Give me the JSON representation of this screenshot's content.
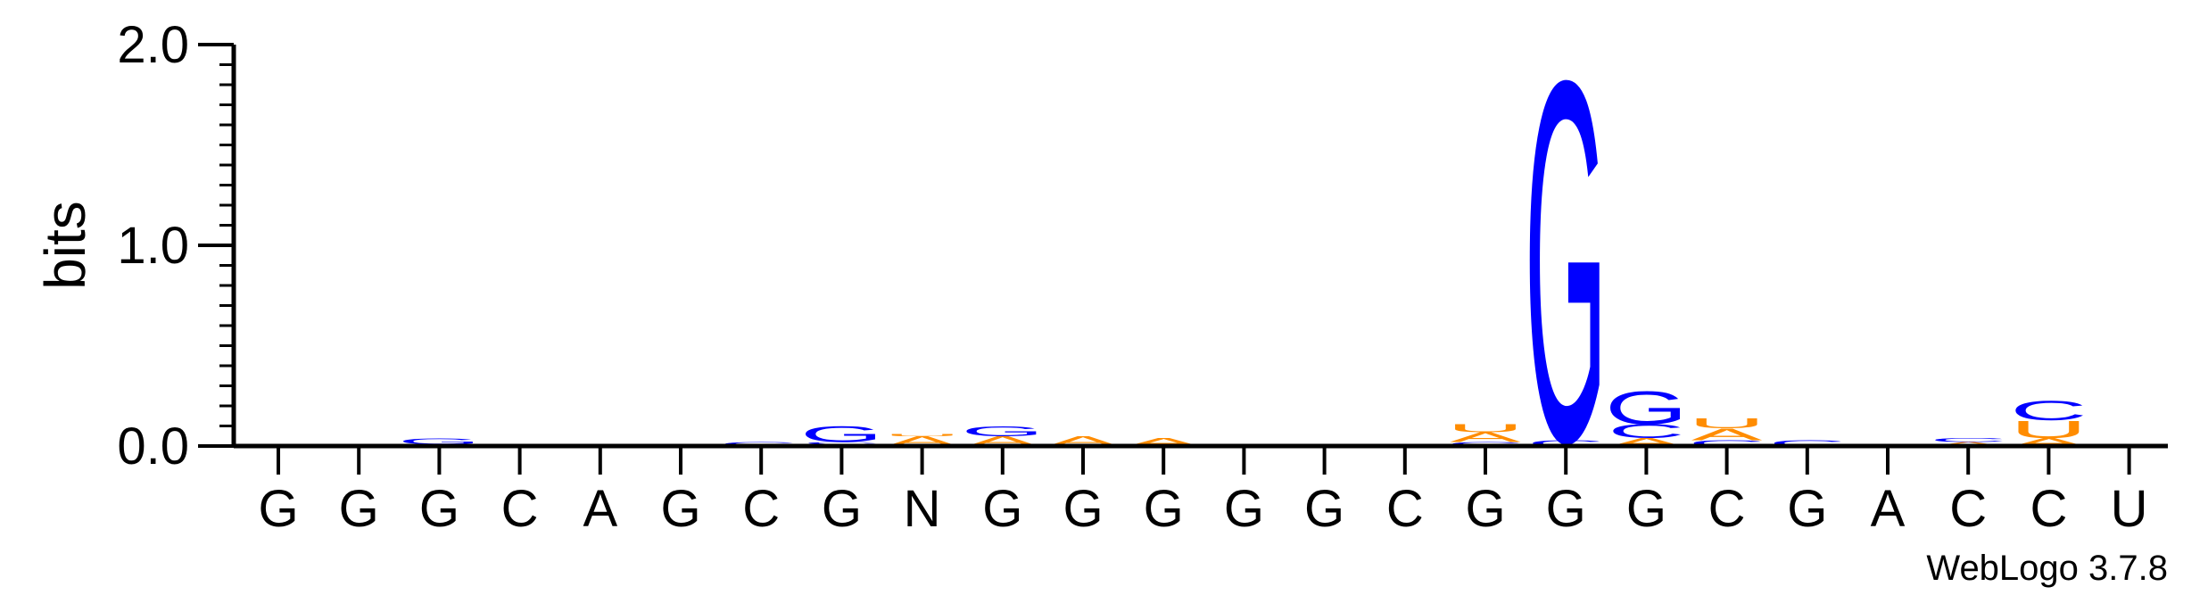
{
  "chart_data": {
    "type": "sequence-logo",
    "ylabel": "bits",
    "ylim": [
      0,
      2.0
    ],
    "y_ticks": [
      "0.0",
      "1.0",
      "2.0"
    ],
    "x_labels": [
      "G",
      "G",
      "G",
      "C",
      "A",
      "G",
      "C",
      "G",
      "N",
      "G",
      "G",
      "G",
      "G",
      "G",
      "C",
      "G",
      "G",
      "G",
      "C",
      "G",
      "A",
      "C",
      "C",
      "U"
    ],
    "colors": {
      "G": "#0000ff",
      "C": "#0000ff",
      "A": "#ff8c00",
      "U": "#ff8c00"
    },
    "positions": [
      [],
      [],
      [
        {
          "letter": "A",
          "bits": 0.01
        },
        {
          "letter": "G",
          "bits": 0.03
        }
      ],
      [],
      [],
      [],
      [
        {
          "letter": "G",
          "bits": 0.02
        }
      ],
      [
        {
          "letter": "A",
          "bits": 0.01
        },
        {
          "letter": "C",
          "bits": 0.01
        },
        {
          "letter": "G",
          "bits": 0.08
        }
      ],
      [
        {
          "letter": "A",
          "bits": 0.05
        },
        {
          "letter": "U",
          "bits": 0.01
        }
      ],
      [
        {
          "letter": "A",
          "bits": 0.05
        },
        {
          "letter": "G",
          "bits": 0.05
        }
      ],
      [
        {
          "letter": "A",
          "bits": 0.05
        }
      ],
      [
        {
          "letter": "A",
          "bits": 0.04
        }
      ],
      [],
      [],
      [],
      [
        {
          "letter": "C",
          "bits": 0.02
        },
        {
          "letter": "A",
          "bits": 0.05
        },
        {
          "letter": "U",
          "bits": 0.04
        }
      ],
      [
        {
          "letter": "C",
          "bits": 0.03
        },
        {
          "letter": "G",
          "bits": 1.85
        }
      ],
      [
        {
          "letter": "A",
          "bits": 0.04
        },
        {
          "letter": "C",
          "bits": 0.07
        },
        {
          "letter": "G",
          "bits": 0.17
        }
      ],
      [
        {
          "letter": "C",
          "bits": 0.03
        },
        {
          "letter": "A",
          "bits": 0.06
        },
        {
          "letter": "U",
          "bits": 0.05
        }
      ],
      [
        {
          "letter": "C",
          "bits": 0.03
        }
      ],
      [],
      [
        {
          "letter": "A",
          "bits": 0.02
        },
        {
          "letter": "C",
          "bits": 0.02
        }
      ],
      [
        {
          "letter": "A",
          "bits": 0.04
        },
        {
          "letter": "U",
          "bits": 0.09
        },
        {
          "letter": "C",
          "bits": 0.1
        }
      ],
      []
    ]
  },
  "credit": "WebLogo 3.7.8"
}
